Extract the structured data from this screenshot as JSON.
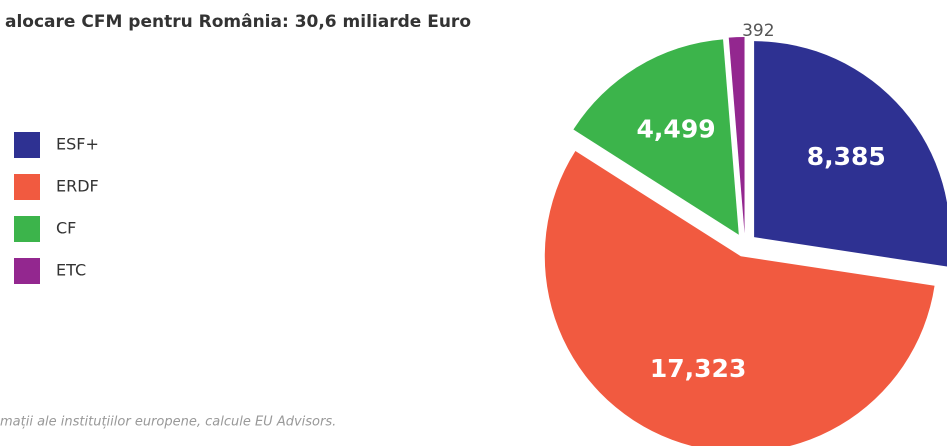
{
  "chart_data": {
    "type": "pie",
    "title": "alocare CFM pentru România: 30,6 miliarde Euro",
    "source": "mații ale instituțiilor europene, calcule EU Advisors.",
    "categories": [
      "ESF+",
      "ERDF",
      "CF",
      "ETC"
    ],
    "values": [
      8385,
      17323,
      4499,
      392
    ],
    "value_labels": [
      "8,385",
      "17,323",
      "4,499",
      "392"
    ],
    "colors": [
      "#2e3192",
      "#f15a40",
      "#3cb44b",
      "#93278f"
    ],
    "legend": "left"
  }
}
